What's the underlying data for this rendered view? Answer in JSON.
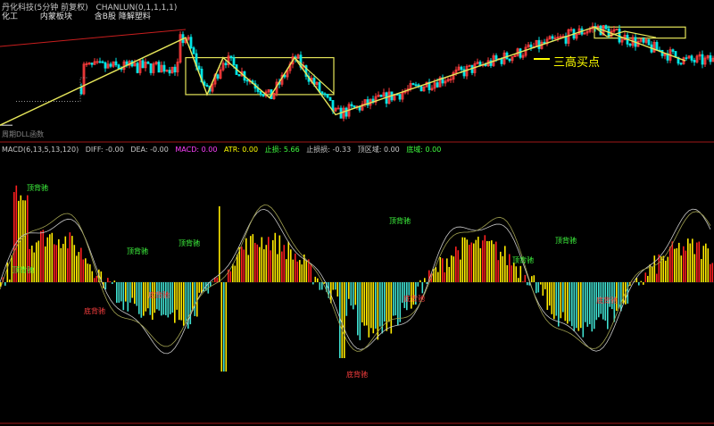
{
  "header": {
    "stock_title": "丹化科技(5分钟 前复权)",
    "indicator_title": "CHANLUN(0,1,1,1,1)",
    "tags": [
      "化工",
      "内蒙板块",
      "含B股 降解塑料"
    ]
  },
  "bottom_label": "周期DLL函数",
  "annotation": "三高买点",
  "macd_header": {
    "name": "MACD(6,13,5,13,120)",
    "diff": "DIFF: -0.00",
    "dea": "DEA: -0.00",
    "macd": "MACD: 0.00",
    "atr": "ATR: 0.00",
    "stop_gain": "止损: 5.66",
    "stop_loss": "止损损: -0.33",
    "zone": "顶区域: 0.00",
    "bottom": "底域: 0.00"
  },
  "colors": {
    "background": "#000000",
    "up_candle": "#ff3c3c",
    "down_candle": "#00e5e5",
    "zigzag": "#e6e65a",
    "box": "#e6e65a",
    "red_line": "#c81e1e",
    "hist_red": "#ff2020",
    "hist_yellow": "#ffeb00",
    "hist_cyan": "#40e0d0",
    "diff_line": "#c8c8c8",
    "dea_line": "#a0a050",
    "label_green": "#40ff40",
    "label_red": "#ff4040"
  },
  "chart_data": [
    {
      "type": "line",
      "zigzag_x": [
        0,
        208,
        232,
        250,
        302,
        330,
        376,
        666,
        768
      ],
      "zigzag_y": [
        5.0,
        6.66,
        5.58,
        6.28,
        5.52,
        6.28,
        5.2,
        6.86,
        6.22
      ],
      "centers": [
        {
          "x_from": 208,
          "x_to": 374,
          "y_low": 5.58,
          "y_high": 6.28
        },
        {
          "x_from": 666,
          "x_to": 768,
          "y_low": 6.65,
          "y_high": 6.86
        }
      ],
      "ylim": [
        4.8,
        7.0
      ]
    },
    {
      "type": "bar",
      "ylim": [
        -1.0,
        1.0
      ],
      "labels": [
        {
          "text": "顶背驰",
          "x": 30,
          "kind": "top"
        },
        {
          "text": "顶背驰",
          "x": 14,
          "kind": "top"
        },
        {
          "text": "顶背驰",
          "x": 142,
          "kind": "top"
        },
        {
          "text": "顶背驰",
          "x": 200,
          "kind": "top"
        },
        {
          "text": "顶背驰",
          "x": 436,
          "kind": "top"
        },
        {
          "text": "顶背驰",
          "x": 574,
          "kind": "top"
        },
        {
          "text": "顶背驰",
          "x": 622,
          "kind": "top"
        },
        {
          "text": "底背驰",
          "x": 94,
          "kind": "bottom"
        },
        {
          "text": "底背驰",
          "x": 166,
          "kind": "bottom"
        },
        {
          "text": "底背驰",
          "x": 452,
          "kind": "bottom"
        },
        {
          "text": "底背驰",
          "x": 388,
          "kind": "bottom"
        },
        {
          "text": "底背驰",
          "x": 668,
          "kind": "bottom"
        }
      ]
    }
  ]
}
